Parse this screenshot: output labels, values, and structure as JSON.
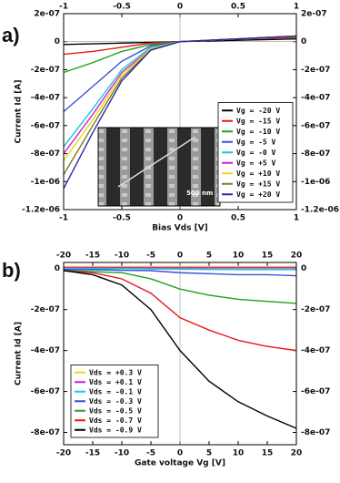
{
  "chart_data": [
    {
      "type": "line",
      "panel_label": "a)",
      "xlabel": "Bias Vds [V]",
      "ylabel": "Current Id [A]",
      "xlim": [
        -1,
        1
      ],
      "xticks": [
        -1,
        -0.5,
        0,
        0.5,
        1
      ],
      "ylim": [
        -1.2e-06,
        2e-07
      ],
      "yticks": [
        {
          "value": 2e-07,
          "label": "2e-07"
        },
        0,
        {
          "value": -2e-07,
          "label": "-2e-07"
        },
        {
          "value": -4e-07,
          "label": "-4e-07"
        },
        {
          "value": -6e-07,
          "label": "-6e-07"
        },
        {
          "value": -8e-07,
          "label": "-8e-07"
        },
        {
          "value": -1e-06,
          "label": "-1e-06"
        },
        {
          "value": -1.2e-06,
          "label": "-1.2e-06"
        }
      ],
      "y2lim": [
        -1.2e-06,
        2e-07
      ],
      "y2ticks": [
        {
          "value": 2e-07,
          "label": "2e-07"
        },
        0,
        {
          "value": -2e-07,
          "label": "-2e-07"
        },
        {
          "value": -4e-07,
          "label": "-4e-07"
        },
        {
          "value": -6e-07,
          "label": "-6e-07"
        },
        {
          "value": -8e-07,
          "label": "-8e-07"
        },
        {
          "value": -1e-06,
          "label": "-1e-06"
        },
        {
          "value": -1.2e-06,
          "label": "-1.2e-06"
        }
      ],
      "legend": "lower right",
      "inset_label": "500 nm",
      "x": [
        -1,
        -0.75,
        -0.5,
        -0.25,
        0,
        0.25,
        0.5,
        0.75,
        1
      ],
      "series": [
        {
          "name": "Vg = -20 V",
          "color": "#000000",
          "values": [
            -2e-08,
            -1.5e-08,
            -1e-08,
            -5e-09,
            0,
            5e-09,
            1e-08,
            1.5e-08,
            2e-08
          ]
        },
        {
          "name": "Vg = -15 V",
          "color": "#e41a1c",
          "values": [
            -9e-08,
            -7e-08,
            -4e-08,
            -1e-08,
            0,
            1e-08,
            2e-08,
            2.5e-08,
            3e-08
          ]
        },
        {
          "name": "Vg = -10 V",
          "color": "#1fa11f",
          "values": [
            -2.2e-07,
            -1.5e-07,
            -7e-08,
            -2e-08,
            0,
            1e-08,
            2e-08,
            3e-08,
            3.5e-08
          ]
        },
        {
          "name": "Vg = -5 V",
          "color": "#3b4fd8",
          "values": [
            -5e-07,
            -3.2e-07,
            -1.4e-07,
            -3e-08,
            0,
            1e-08,
            2e-08,
            3e-08,
            4e-08
          ]
        },
        {
          "name": "Vg = -0 V",
          "color": "#18c6d8",
          "values": [
            -7.5e-07,
            -4.8e-07,
            -2e-07,
            -4e-08,
            0,
            1e-08,
            2e-08,
            3e-08,
            4e-08
          ]
        },
        {
          "name": "Vg = +5 V",
          "color": "#d21fd2",
          "values": [
            -8e-07,
            -5.2e-07,
            -2.2e-07,
            -5e-08,
            0,
            1e-08,
            2e-08,
            3e-08,
            4e-08
          ]
        },
        {
          "name": "Vg = +10 V",
          "color": "#e8d820",
          "values": [
            -8.5e-07,
            -5.6e-07,
            -2.4e-07,
            -5e-08,
            0,
            1e-08,
            2e-08,
            3e-08,
            4e-08
          ]
        },
        {
          "name": "Vg = +15 V",
          "color": "#7d7d1a",
          "values": [
            -9.5e-07,
            -6e-07,
            -2.6e-07,
            -6e-08,
            0,
            1e-08,
            2e-08,
            3e-08,
            4e-08
          ]
        },
        {
          "name": "Vg = +20 V",
          "color": "#2a2aa8",
          "values": [
            -1.05e-06,
            -6.5e-07,
            -2.8e-07,
            -6e-08,
            0,
            1e-08,
            2e-08,
            3e-08,
            4e-08
          ]
        }
      ]
    },
    {
      "type": "line",
      "panel_label": "b)",
      "xlabel": "Gate voltage Vg [V]",
      "ylabel": "Current Id [A]",
      "xlim": [
        -20,
        20
      ],
      "xticks": [
        -20,
        -15,
        -10,
        -5,
        0,
        5,
        10,
        15,
        20
      ],
      "ylim": [
        -8.6e-07,
        3e-08
      ],
      "yticks": [
        0,
        {
          "value": -2e-07,
          "label": "-2e-07"
        },
        {
          "value": -4e-07,
          "label": "-4e-07"
        },
        {
          "value": -6e-07,
          "label": "-6e-07"
        },
        {
          "value": -8e-07,
          "label": "-8e-07"
        }
      ],
      "y2lim": [
        -8.6e-07,
        3e-08
      ],
      "y2ticks": [
        0,
        {
          "value": -2e-07,
          "label": "-2e-07"
        },
        {
          "value": -4e-07,
          "label": "-4e-07"
        },
        {
          "value": -6e-07,
          "label": "-6e-07"
        },
        {
          "value": -8e-07,
          "label": "-8e-07"
        }
      ],
      "legend": "lower left",
      "x": [
        -20,
        -15,
        -10,
        -5,
        0,
        5,
        10,
        15,
        20
      ],
      "series": [
        {
          "name": "Vds = +0.3 V",
          "color": "#e8d820",
          "values": [
            1e-08,
            1e-08,
            1e-08,
            1e-08,
            1e-08,
            1e-08,
            1e-08,
            1e-08,
            1e-08
          ]
        },
        {
          "name": "Vds = +0.1 V",
          "color": "#d21fd2",
          "values": [
            5e-09,
            5e-09,
            5e-09,
            5e-09,
            5e-09,
            5e-09,
            5e-09,
            5e-09,
            5e-09
          ]
        },
        {
          "name": "Vds = -0.1 V",
          "color": "#18c6d8",
          "values": [
            0,
            0,
            0,
            -2e-09,
            -3e-09,
            -4e-09,
            -5e-09,
            -5e-09,
            -5e-09
          ]
        },
        {
          "name": "Vds = -0.3 V",
          "color": "#3b4fd8",
          "values": [
            -5e-09,
            -5e-09,
            -8e-09,
            -1e-08,
            -2e-08,
            -2.5e-08,
            -3e-08,
            -3e-08,
            -3.5e-08
          ]
        },
        {
          "name": "Vds = -0.5 V",
          "color": "#1fa11f",
          "values": [
            -1e-08,
            -1.5e-08,
            -2e-08,
            -5e-08,
            -1e-07,
            -1.3e-07,
            -1.5e-07,
            -1.6e-07,
            -1.7e-07
          ]
        },
        {
          "name": "Vds = -0.7 V",
          "color": "#e41a1c",
          "values": [
            -1e-08,
            -2e-08,
            -5e-08,
            -1.2e-07,
            -2.4e-07,
            -3e-07,
            -3.5e-07,
            -3.8e-07,
            -4e-07
          ]
        },
        {
          "name": "Vds = -0.9 V",
          "color": "#000000",
          "values": [
            -1e-08,
            -3e-08,
            -8e-08,
            -2e-07,
            -4e-07,
            -5.5e-07,
            -6.5e-07,
            -7.2e-07,
            -7.8e-07
          ]
        }
      ]
    }
  ]
}
